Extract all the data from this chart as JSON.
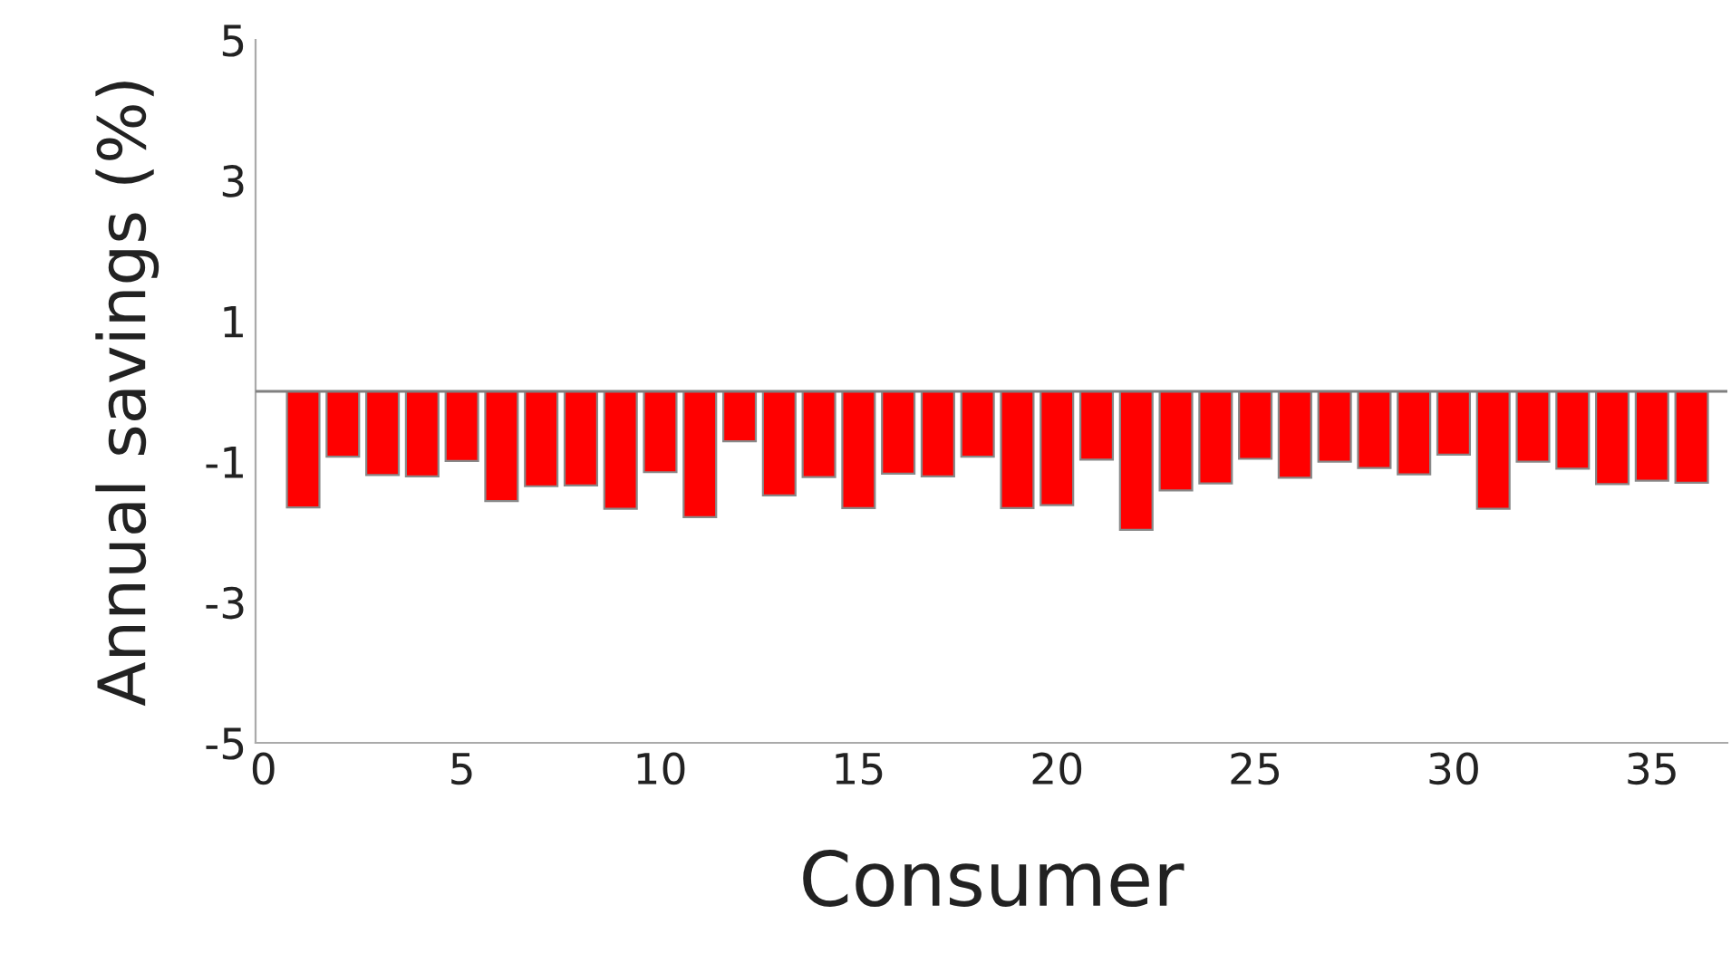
{
  "chart_data": {
    "type": "bar",
    "xlabel": "Consumer",
    "ylabel": "Annual savings (%)",
    "x": [
      1,
      2,
      3,
      4,
      5,
      6,
      7,
      8,
      9,
      10,
      11,
      12,
      13,
      14,
      15,
      16,
      17,
      18,
      19,
      20,
      21,
      22,
      23,
      24,
      25,
      26,
      27,
      28,
      29,
      30,
      31,
      32,
      33,
      34,
      35,
      36
    ],
    "values": [
      -1.65,
      -0.93,
      -1.19,
      -1.21,
      -0.99,
      -1.56,
      -1.35,
      -1.34,
      -1.67,
      -1.15,
      -1.79,
      -0.71,
      -1.48,
      -1.22,
      -1.66,
      -1.17,
      -1.21,
      -0.93,
      -1.66,
      -1.62,
      -0.97,
      -1.97,
      -1.41,
      -1.31,
      -0.96,
      -1.23,
      -1.0,
      -1.09,
      -1.18,
      -0.9,
      -1.67,
      -1.0,
      -1.1,
      -1.32,
      -1.27,
      -1.3
    ],
    "color": "#ff0000",
    "xlim": [
      -0.2,
      36.9
    ],
    "xticks": [
      0,
      5,
      10,
      15,
      20,
      25,
      30,
      35
    ],
    "ylim": [
      -5,
      5
    ],
    "yticks": [
      -5,
      -3,
      -1,
      1,
      3,
      5
    ],
    "ref_lines": [
      {
        "axis": "y",
        "value": 0,
        "color": "#808080"
      }
    ],
    "grid": false
  }
}
